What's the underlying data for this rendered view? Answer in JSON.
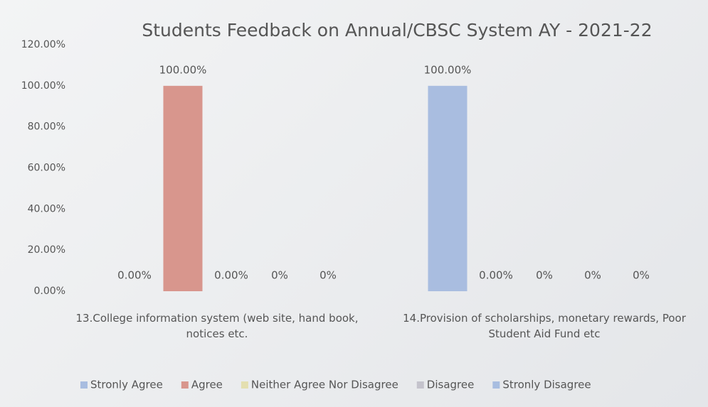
{
  "chart_data": {
    "type": "bar",
    "title": "Students Feedback on Annual/CBSC System AY - 2021-22",
    "categories": [
      "13.College information system (web site, hand book, notices etc.",
      "14.Provision of scholarships, monetary rewards, Poor Student Aid Fund etc"
    ],
    "series": [
      {
        "name": "Stronly Agree",
        "color": "#a9bde0",
        "values": [
          0,
          100
        ],
        "value_labels": [
          "0.00%",
          "100.00%"
        ]
      },
      {
        "name": "Agree",
        "color": "#d8968d",
        "values": [
          100,
          0
        ],
        "value_labels": [
          "100.00%",
          "0.00%"
        ]
      },
      {
        "name": "Neither Agree Nor Disagree",
        "color": "#e4dfb0",
        "values": [
          0,
          0
        ],
        "value_labels": [
          "0.00%",
          "0%"
        ]
      },
      {
        "name": "Disagree",
        "color": "#c4c3cc",
        "values": [
          0,
          0
        ],
        "value_labels": [
          "0%",
          "0%"
        ]
      },
      {
        "name": "Stronly Disagree",
        "color": "#a8bde0",
        "values": [
          0,
          0
        ],
        "value_labels": [
          "0%",
          "0%"
        ]
      }
    ],
    "ylim": [
      0,
      120
    ],
    "yticks": [
      {
        "value": 0,
        "label": "0.00%"
      },
      {
        "value": 20,
        "label": "20.00%"
      },
      {
        "value": 40,
        "label": "40.00%"
      },
      {
        "value": 60,
        "label": "60.00%"
      },
      {
        "value": 80,
        "label": "80.00%"
      },
      {
        "value": 100,
        "label": "100.00%"
      },
      {
        "value": 120,
        "label": "120.00%"
      }
    ],
    "grid": false,
    "legend": "bottom"
  }
}
